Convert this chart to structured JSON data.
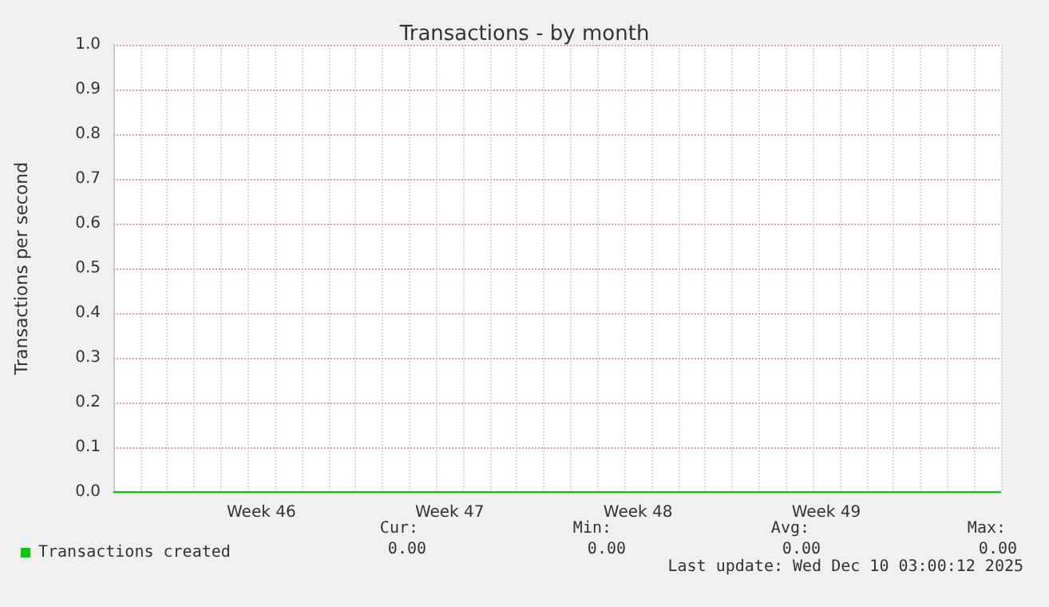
{
  "chart_data": {
    "type": "line",
    "title": "Transactions - by month",
    "ylabel": "Transactions per second",
    "categories": [
      null,
      null,
      null,
      null,
      null,
      null,
      null,
      null,
      null,
      null,
      null,
      "Week 46",
      null,
      null,
      null,
      null,
      null,
      null,
      null,
      null,
      null,
      null,
      null,
      null,
      null,
      "Week 47",
      null,
      null,
      null,
      null,
      null,
      null,
      null,
      null,
      null,
      null,
      null,
      null,
      null,
      "Week 48",
      null,
      null,
      null,
      null,
      null,
      null,
      null,
      null,
      null,
      null,
      null,
      null,
      null,
      "Week 49",
      null,
      null,
      null,
      null,
      null,
      null,
      null,
      null,
      null,
      null,
      null,
      null,
      null
    ],
    "series": [
      {
        "name": "Transactions created",
        "color": "#00cc00",
        "values": [
          0,
          0,
          0,
          0,
          0,
          0,
          0,
          0,
          0,
          0,
          0,
          0,
          0,
          0,
          0,
          0,
          0,
          0,
          0,
          0,
          0,
          0,
          0,
          0,
          0,
          0,
          0,
          0,
          0,
          0,
          0,
          0,
          0,
          0,
          0,
          0,
          0,
          0,
          0,
          0,
          0,
          0,
          0,
          0,
          0,
          0,
          0,
          0,
          0,
          0,
          0,
          0,
          0,
          0,
          0,
          0,
          0,
          0,
          0,
          0,
          0,
          0,
          0,
          0,
          0,
          0,
          0
        ]
      }
    ],
    "ylim": [
      0,
      1
    ],
    "yticks": [
      {
        "value": 0,
        "label": "0.0"
      },
      0.1,
      0.2,
      0.3,
      0.4,
      0.5,
      0.6,
      0.7,
      0.8,
      0.9,
      {
        "value": 1,
        "label": "1.0"
      }
    ],
    "grid": true,
    "legend": "bottom left",
    "marker": "none",
    "line_style": "solid",
    "annotations": [
      "Cur:",
      "0.00",
      "Min:",
      "0.00",
      "Avg:",
      "0.00",
      "Max:",
      "0.00",
      "Last update: Wed Dec 10 03:00:12 2025"
    ]
  }
}
